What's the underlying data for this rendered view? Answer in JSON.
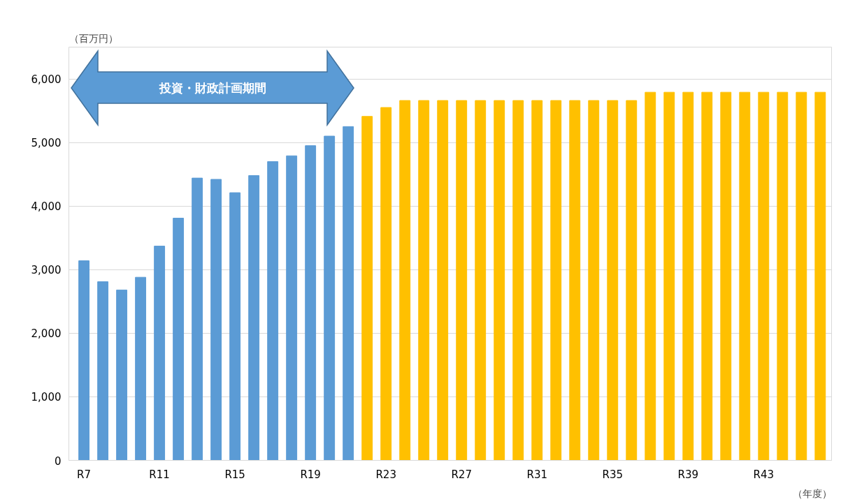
{
  "chart_data": {
    "type": "bar",
    "ylabel": "（百万円）",
    "xlabel": "（年度）",
    "categories": [
      "R7",
      null,
      null,
      null,
      "R11",
      null,
      null,
      null,
      "R15",
      null,
      null,
      null,
      "R19",
      null,
      null,
      null,
      "R23",
      null,
      null,
      null,
      "R27",
      null,
      null,
      null,
      "R31",
      null,
      null,
      null,
      "R35",
      null,
      null,
      null,
      "R39",
      null,
      null,
      null,
      "R43",
      null,
      null,
      null
    ],
    "values": [
      3140,
      2810,
      2680,
      2880,
      3370,
      3810,
      4440,
      4420,
      4210,
      4480,
      4700,
      4790,
      4950,
      5100,
      5250,
      5410,
      5550,
      5660,
      5660,
      5660,
      5660,
      5660,
      5660,
      5660,
      5660,
      5660,
      5660,
      5660,
      5660,
      5660,
      5790,
      5790,
      5790,
      5790,
      5790,
      5790,
      5790,
      5790,
      5790,
      5790
    ],
    "colors": [
      "#5b9bd5",
      "#5b9bd5",
      "#5b9bd5",
      "#5b9bd5",
      "#5b9bd5",
      "#5b9bd5",
      "#5b9bd5",
      "#5b9bd5",
      "#5b9bd5",
      "#5b9bd5",
      "#5b9bd5",
      "#5b9bd5",
      "#5b9bd5",
      "#5b9bd5",
      "#5b9bd5",
      "#ffc000",
      "#ffc000",
      "#ffc000",
      "#ffc000",
      "#ffc000",
      "#ffc000",
      "#ffc000",
      "#ffc000",
      "#ffc000",
      "#ffc000",
      "#ffc000",
      "#ffc000",
      "#ffc000",
      "#ffc000",
      "#ffc000",
      "#ffc000",
      "#ffc000",
      "#ffc000",
      "#ffc000",
      "#ffc000",
      "#ffc000",
      "#ffc000",
      "#ffc000",
      "#ffc000",
      "#ffc000"
    ],
    "ylim": [
      0,
      6500
    ],
    "yticks": [
      0,
      {
        "value": 1000,
        "label": "1,000"
      },
      {
        "value": 2000,
        "label": "2,000"
      },
      {
        "value": 3000,
        "label": "3,000"
      },
      {
        "value": 4000,
        "label": "4,000"
      },
      {
        "value": 5000,
        "label": "5,000"
      },
      {
        "value": 6000,
        "label": "6,000"
      }
    ],
    "grid": "y",
    "annotations": [
      "投資・財政計画期間"
    ]
  }
}
